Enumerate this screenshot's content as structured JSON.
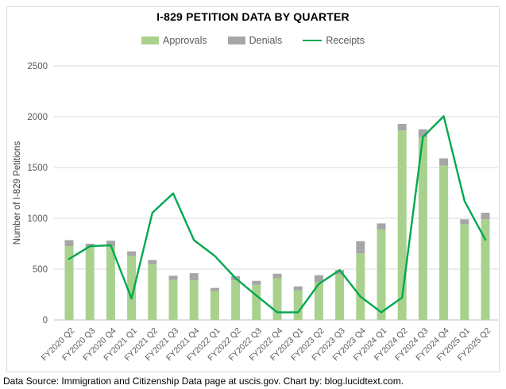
{
  "footer": {
    "text": "Data Source: Immigration and Citizenship Data page at uscis.gov. Chart by: blog.lucidtext.com."
  },
  "colors": {
    "approvals": "#a9d18e",
    "denials": "#a6a6a6",
    "receipts": "#00a94f",
    "gridline": "#d9d9d9",
    "axis_line": "#bfbfbf",
    "tick_text": "#595959",
    "axis_title_text": "#404040",
    "frame_border": "#d9d9d9"
  },
  "chart_data": {
    "type": "bar",
    "subtype": "stacked-bars-with-line-overlay",
    "title": "I-829 PETITION DATA BY QUARTER",
    "xlabel": "",
    "ylabel": "Number of I-829 Petitions",
    "ylim": [
      0,
      2500
    ],
    "yticks": [
      0,
      500,
      1000,
      1500,
      2000,
      2500
    ],
    "grid": "horizontal",
    "legend_position": "top-center",
    "categories": [
      "FY2020 Q2",
      "FY2020 Q3",
      "FY2020 Q4",
      "FY2021 Q1",
      "FY2021 Q2",
      "FY2021 Q3",
      "FY2021 Q4",
      "FY2022 Q1",
      "FY2022 Q2",
      "FY2022 Q3",
      "FY2022 Q4",
      "FY2023 Q1",
      "FY2023 Q2",
      "FY2023 Q3",
      "FY2023 Q4",
      "FY2024 Q1",
      "FY2024 Q2",
      "FY2024 Q3",
      "FY2024 Q4",
      "FY2025 Q1",
      "FY2025 Q2"
    ],
    "series": [
      {
        "name": "Approvals",
        "kind": "bar-stack",
        "color": "#a9d18e",
        "values": [
          725,
          720,
          720,
          630,
          550,
          395,
          390,
          285,
          390,
          345,
          410,
          290,
          375,
          450,
          655,
          890,
          1865,
          1800,
          1520,
          940,
          990
        ]
      },
      {
        "name": "Denials",
        "kind": "bar-stack",
        "color": "#a6a6a6",
        "values": [
          60,
          30,
          60,
          45,
          40,
          40,
          70,
          30,
          40,
          40,
          45,
          40,
          65,
          40,
          120,
          60,
          65,
          75,
          70,
          50,
          65
        ]
      },
      {
        "name": "Receipts",
        "kind": "line",
        "color": "#00a94f",
        "values": [
          600,
          725,
          735,
          210,
          1055,
          1245,
          785,
          630,
          410,
          240,
          75,
          75,
          355,
          490,
          230,
          75,
          220,
          1800,
          2005,
          1170,
          790
        ]
      }
    ]
  }
}
